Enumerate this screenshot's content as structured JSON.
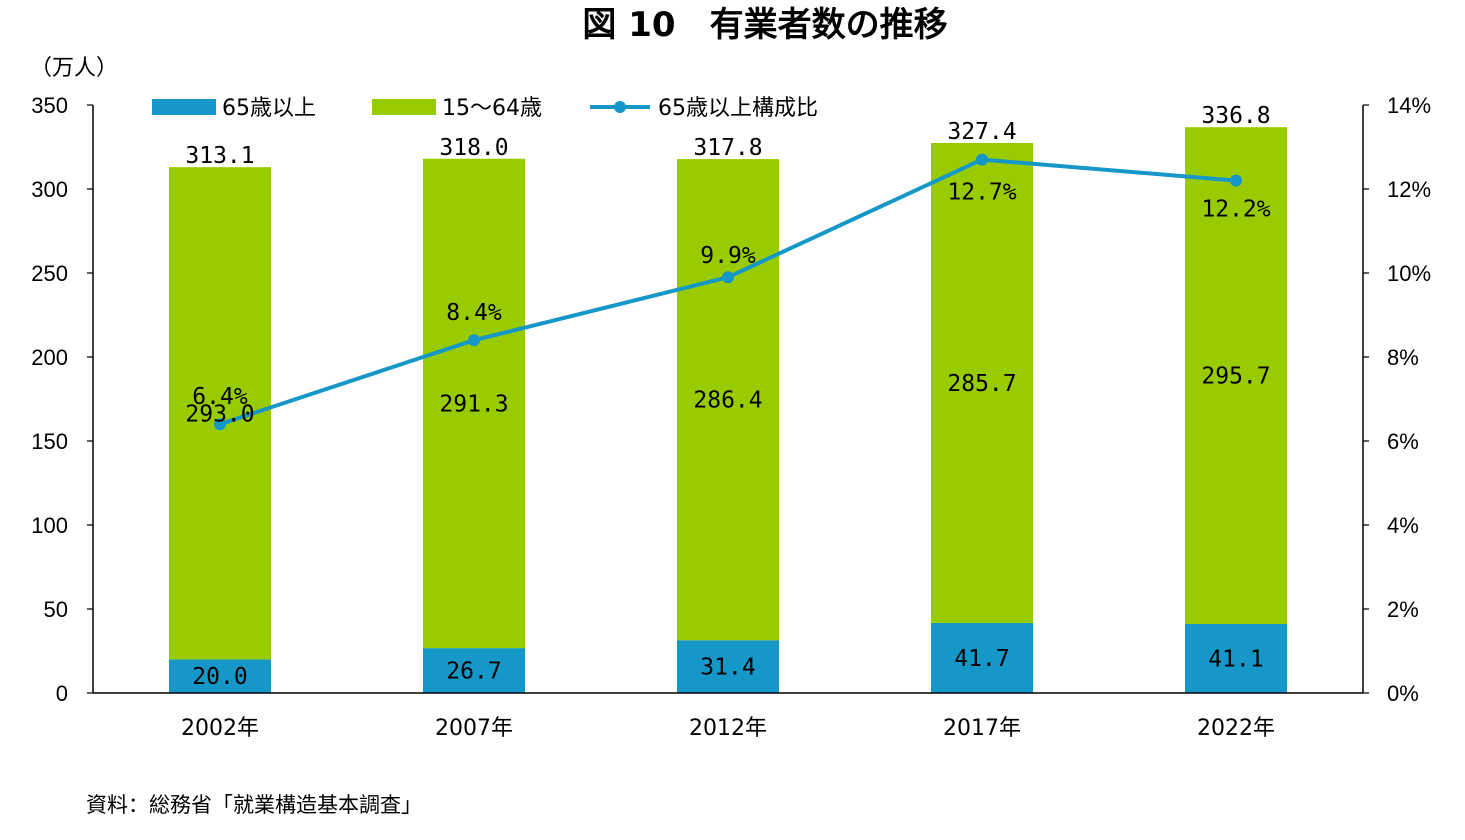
{
  "title": "図 10　有業者数の推移",
  "source": "資料：総務省「就業構造基本調査」",
  "chart_data": {
    "type": "bar",
    "stacked": true,
    "categories": [
      "2002年",
      "2007年",
      "2012年",
      "2017年",
      "2022年"
    ],
    "series": [
      {
        "name": "65歳以上",
        "kind": "bar",
        "axis": "left",
        "color": "#1597C8",
        "values": [
          20.0,
          26.7,
          31.4,
          41.7,
          41.1
        ],
        "labels": [
          "20.0",
          "26.7",
          "31.4",
          "41.7",
          "41.1"
        ]
      },
      {
        "name": "15～64歳",
        "kind": "bar",
        "axis": "left",
        "color": "#99CC00",
        "values": [
          293.0,
          291.3,
          286.4,
          285.7,
          295.7
        ],
        "labels": [
          "293.0",
          "291.3",
          "286.4",
          "285.7",
          "295.7"
        ]
      },
      {
        "name": "65歳以上構成比",
        "kind": "line",
        "axis": "right",
        "color": "#1597C8",
        "values": [
          6.4,
          8.4,
          9.9,
          12.7,
          12.2
        ],
        "labels": [
          "6.4%",
          "8.4%",
          "9.9%",
          "12.7%",
          "12.2%"
        ]
      }
    ],
    "totals": [
      313.1,
      318.0,
      317.8,
      327.4,
      336.8
    ],
    "total_labels": [
      "313.1",
      "318.0",
      "317.8",
      "327.4",
      "336.8"
    ],
    "y_left": {
      "unit": "（万人）",
      "ylim": [
        0,
        350
      ],
      "ticks": [
        "0",
        "50",
        "100",
        "150",
        "200",
        "250",
        "300",
        "350"
      ]
    },
    "y_right": {
      "ylim": [
        0,
        14
      ],
      "ticks": [
        "0%",
        "2%",
        "4%",
        "6%",
        "8%",
        "10%",
        "12%",
        "14%"
      ]
    },
    "grid": false,
    "legend_position": "top"
  }
}
